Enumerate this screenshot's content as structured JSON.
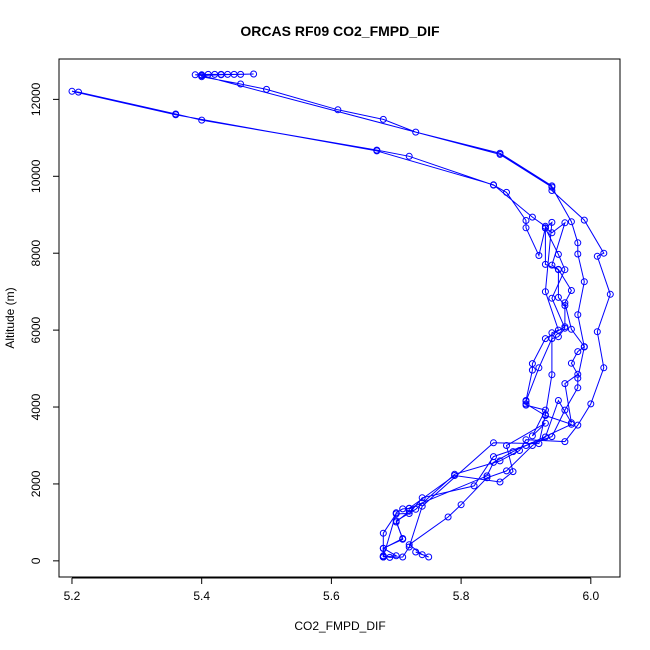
{
  "chart_data": {
    "type": "line",
    "title": "ORCAS RF09 CO2_FMPD_DIF",
    "xlabel": "CO2_FMPD_DIF",
    "ylabel": "Altitude (m)",
    "xlim": [
      5.18,
      6.045
    ],
    "ylim": [
      -420,
      13050
    ],
    "xticks": [
      "5.2",
      "5.4",
      "5.6",
      "5.8",
      "6.0"
    ],
    "yticks": [
      "0",
      "2000",
      "4000",
      "6000",
      "8000",
      "10000",
      "12000"
    ],
    "xtick_values": [
      5.2,
      5.4,
      5.6,
      5.8,
      6.0
    ],
    "ytick_values": [
      0,
      2000,
      4000,
      6000,
      8000,
      10000,
      12000
    ],
    "grid": false,
    "series": [
      {
        "color": "#0000ff",
        "points": [
          [
            5.68,
            100
          ],
          [
            5.7,
            130
          ],
          [
            5.68,
            330
          ],
          [
            5.71,
            560
          ],
          [
            5.7,
            1040
          ],
          [
            5.73,
            1340
          ],
          [
            5.79,
            2250
          ],
          [
            5.86,
            2600
          ],
          [
            5.89,
            2870
          ],
          [
            5.9,
            3150
          ],
          [
            5.96,
            3100
          ],
          [
            5.98,
            3530
          ],
          [
            6.0,
            4080
          ],
          [
            6.02,
            5020
          ],
          [
            6.01,
            5960
          ],
          [
            6.03,
            6930
          ],
          [
            6.01,
            7920
          ],
          [
            6.02,
            8000
          ],
          [
            5.99,
            8860
          ],
          [
            5.94,
            9630
          ],
          [
            5.94,
            9750
          ],
          [
            5.86,
            10600
          ],
          [
            5.73,
            11150
          ],
          [
            5.68,
            11480
          ],
          [
            5.61,
            11730
          ],
          [
            5.5,
            12260
          ],
          [
            5.46,
            12400
          ],
          [
            5.4,
            12590
          ],
          [
            5.4,
            12620
          ],
          [
            5.39,
            12640
          ],
          [
            5.4,
            12640
          ],
          [
            5.41,
            12650
          ],
          [
            5.42,
            12650
          ],
          [
            5.43,
            12650
          ],
          [
            5.44,
            12650
          ],
          [
            5.45,
            12650
          ],
          [
            5.46,
            12650
          ],
          [
            5.48,
            12660
          ],
          [
            5.43,
            12640
          ],
          [
            5.4,
            12620
          ],
          [
            5.86,
            10570
          ],
          [
            5.94,
            9720
          ],
          [
            5.97,
            8820
          ],
          [
            5.98,
            8270
          ],
          [
            5.98,
            7980
          ],
          [
            5.99,
            7260
          ],
          [
            5.98,
            6400
          ],
          [
            5.99,
            5560
          ],
          [
            5.98,
            4750
          ],
          [
            5.98,
            4500
          ],
          [
            5.96,
            3920
          ],
          [
            5.94,
            3230
          ],
          [
            5.9,
            3000
          ],
          [
            5.85,
            2710
          ],
          [
            5.82,
            1950
          ],
          [
            5.74,
            1640
          ],
          [
            5.72,
            1230
          ],
          [
            5.7,
            1220
          ],
          [
            5.68,
            720
          ],
          [
            5.68,
            100
          ]
        ]
      },
      {
        "color": "#0000ff",
        "points": [
          [
            5.75,
            100
          ],
          [
            5.73,
            230
          ],
          [
            5.74,
            160
          ],
          [
            5.72,
            420
          ],
          [
            5.78,
            1140
          ],
          [
            5.8,
            1460
          ],
          [
            5.84,
            2160
          ],
          [
            5.87,
            2340
          ],
          [
            5.91,
            3000
          ],
          [
            5.93,
            3220
          ],
          [
            5.95,
            4170
          ],
          [
            5.97,
            3590
          ],
          [
            5.96,
            4610
          ],
          [
            5.98,
            4850
          ],
          [
            5.97,
            5140
          ],
          [
            5.98,
            5440
          ],
          [
            5.99,
            5570
          ],
          [
            5.97,
            6020
          ],
          [
            5.96,
            6710
          ],
          [
            5.97,
            7030
          ],
          [
            5.95,
            7580
          ],
          [
            5.94,
            7690
          ],
          [
            5.96,
            8790
          ],
          [
            5.94,
            8530
          ],
          [
            5.93,
            8660
          ],
          [
            5.92,
            7940
          ],
          [
            5.9,
            8660
          ],
          [
            5.9,
            8850
          ],
          [
            5.87,
            9580
          ],
          [
            5.85,
            9770
          ],
          [
            5.72,
            10520
          ],
          [
            5.67,
            10680
          ],
          [
            5.4,
            11460
          ],
          [
            5.36,
            11620
          ],
          [
            5.21,
            12190
          ],
          [
            5.2,
            12210
          ],
          [
            5.36,
            11600
          ],
          [
            5.67,
            10660
          ],
          [
            5.85,
            9780
          ],
          [
            5.91,
            8940
          ],
          [
            5.93,
            8700
          ],
          [
            5.93,
            7710
          ],
          [
            5.95,
            7570
          ],
          [
            5.95,
            6850
          ],
          [
            5.96,
            6640
          ],
          [
            5.96,
            6090
          ],
          [
            5.93,
            5780
          ],
          [
            5.91,
            5130
          ],
          [
            5.91,
            4960
          ],
          [
            5.9,
            4170
          ],
          [
            5.9,
            4050
          ],
          [
            5.93,
            3920
          ],
          [
            5.91,
            3250
          ],
          [
            5.93,
            3580
          ],
          [
            5.87,
            3000
          ],
          [
            5.88,
            2320
          ],
          [
            5.86,
            2050
          ],
          [
            5.79,
            2220
          ],
          [
            5.72,
            1370
          ],
          [
            5.72,
            1290
          ],
          [
            5.7,
            1010
          ],
          [
            5.71,
            580
          ],
          [
            5.68,
            320
          ],
          [
            5.68,
            110
          ]
        ]
      },
      {
        "color": "#0000ff",
        "points": [
          [
            5.68,
            130
          ],
          [
            5.69,
            90
          ],
          [
            5.71,
            100
          ],
          [
            5.72,
            360
          ],
          [
            5.74,
            1420
          ],
          [
            5.85,
            3070
          ],
          [
            5.92,
            3050
          ],
          [
            5.93,
            3800
          ],
          [
            5.94,
            4840
          ],
          [
            5.94,
            5930
          ],
          [
            5.95,
            6000
          ],
          [
            5.93,
            7000
          ],
          [
            5.94,
            8800
          ],
          [
            5.93,
            8650
          ],
          [
            5.95,
            7970
          ],
          [
            5.96,
            7570
          ],
          [
            5.94,
            6830
          ],
          [
            5.96,
            6050
          ],
          [
            5.95,
            5830
          ],
          [
            5.94,
            5780
          ],
          [
            5.92,
            5020
          ],
          [
            5.9,
            4150
          ],
          [
            5.9,
            4080
          ],
          [
            5.93,
            3780
          ],
          [
            5.97,
            3550
          ],
          [
            5.88,
            2840
          ],
          [
            5.85,
            2560
          ],
          [
            5.84,
            2210
          ],
          [
            5.74,
            1510
          ],
          [
            5.72,
            1360
          ],
          [
            5.71,
            1350
          ],
          [
            5.7,
            1250
          ],
          [
            5.68,
            100
          ]
        ]
      }
    ]
  }
}
